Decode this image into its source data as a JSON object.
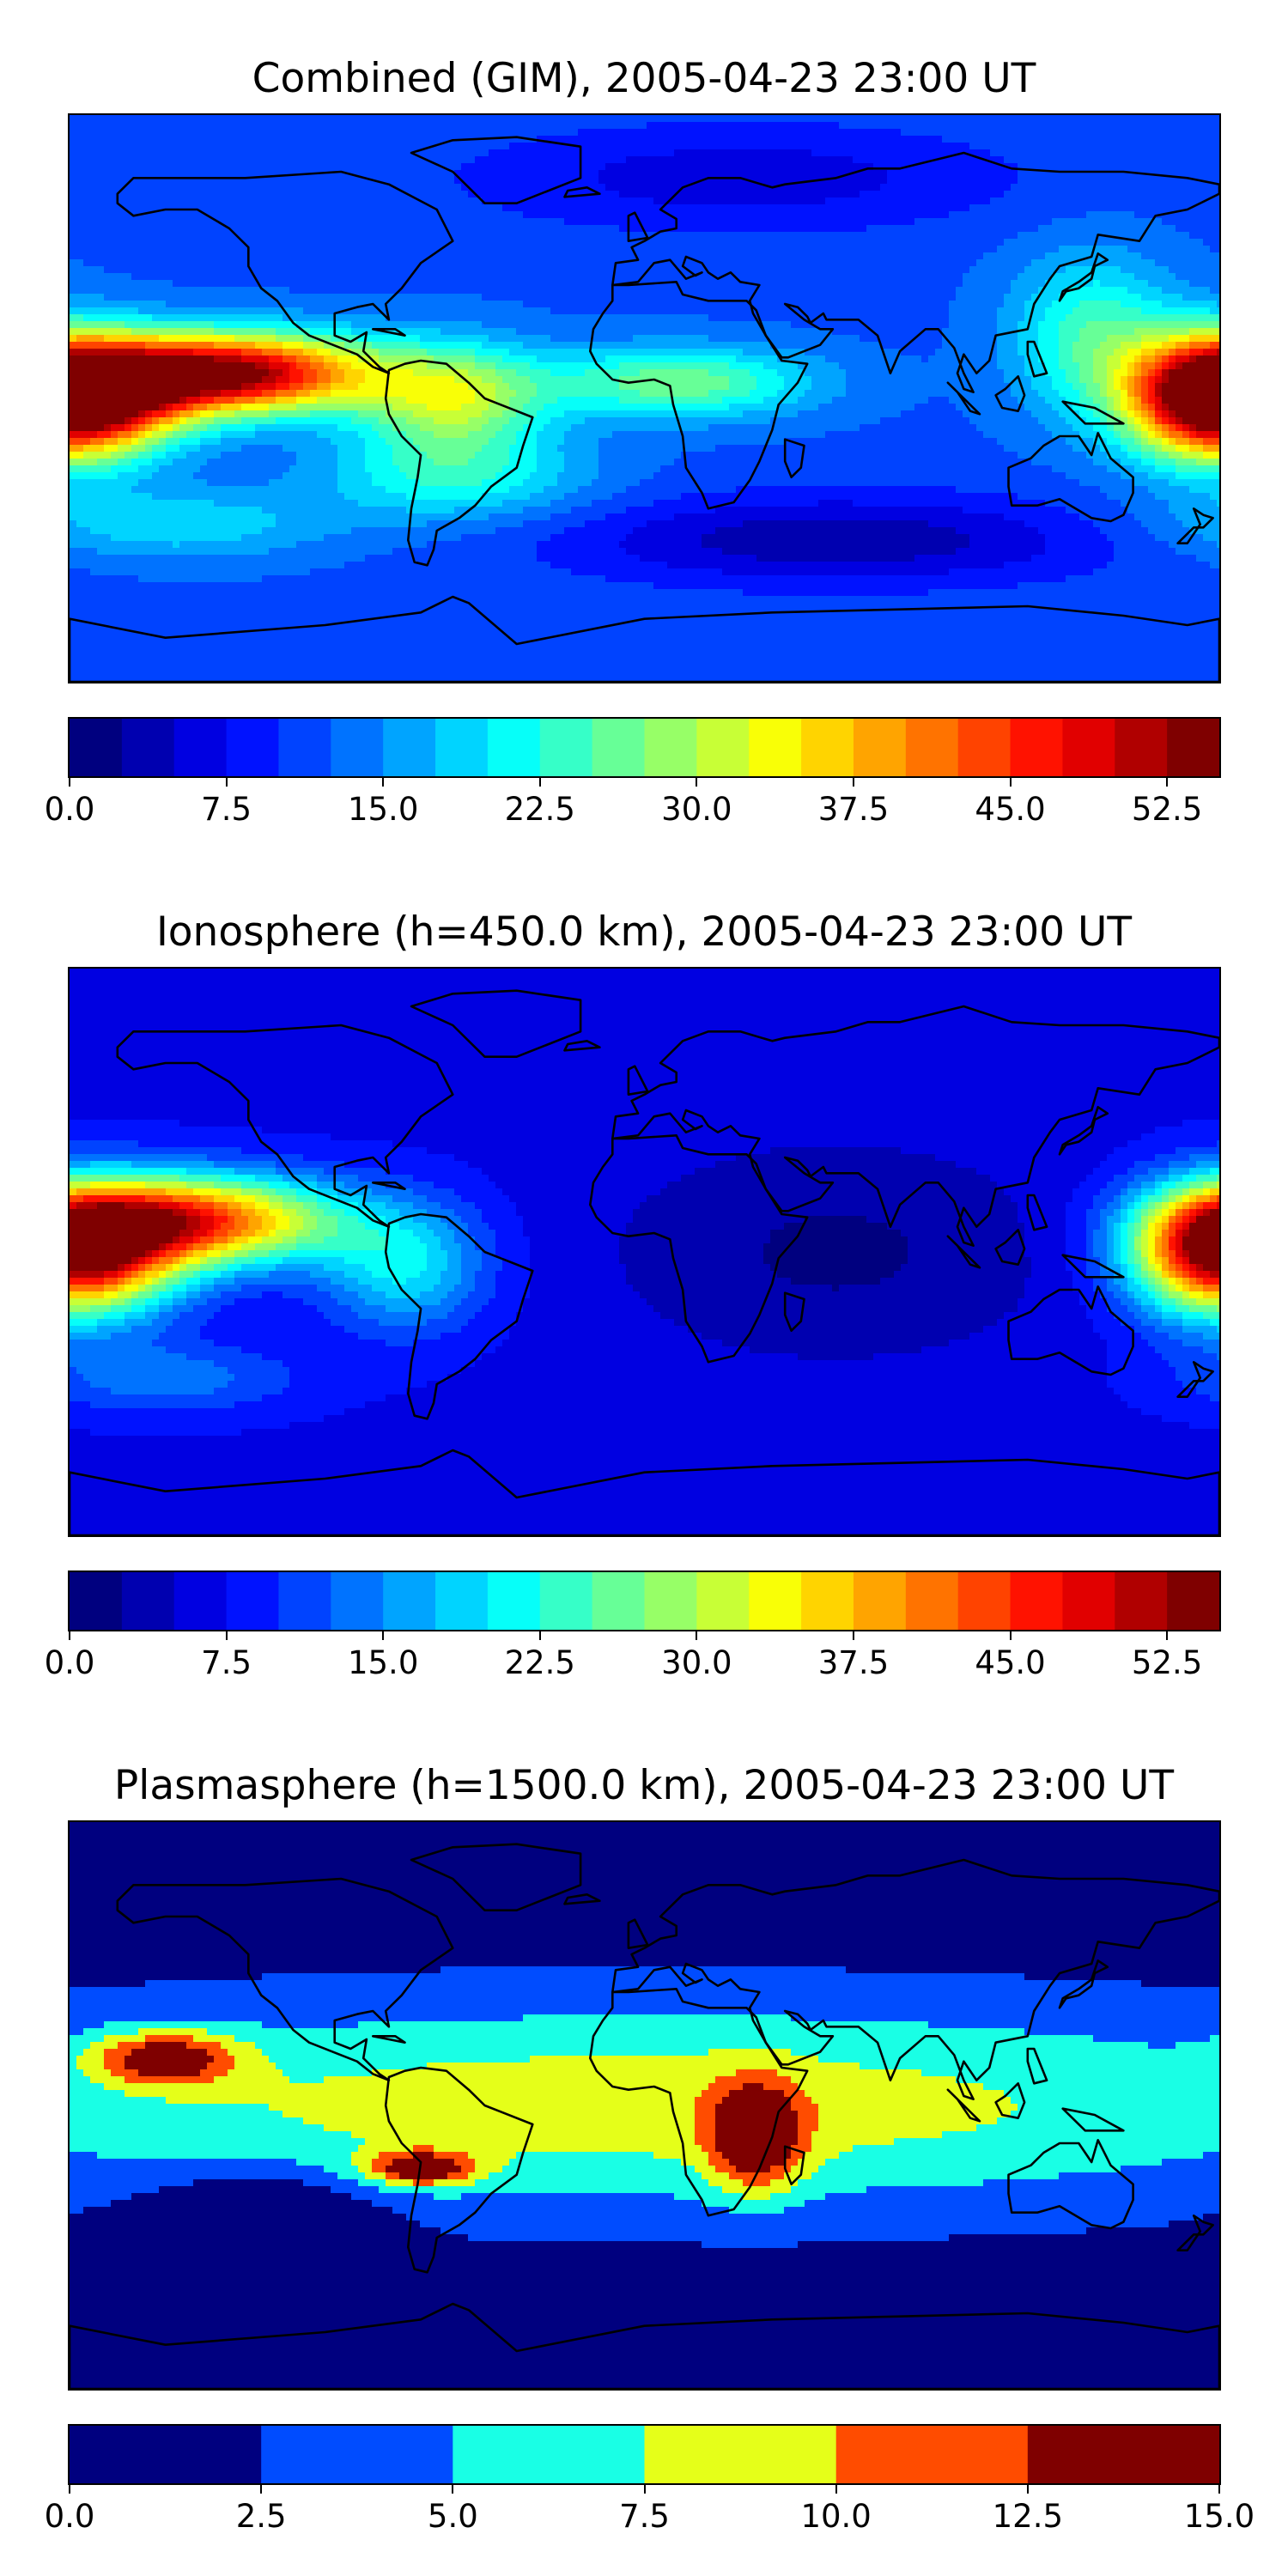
{
  "chart_data": [
    {
      "type": "heatmap",
      "title": "Combined (GIM), 2005-04-23 23:00 UT",
      "xlabel": "",
      "ylabel": "",
      "grid": false,
      "colorbar": {
        "min": 0.0,
        "max": 55.0,
        "levels": 22,
        "tick_values": [
          0.0,
          7.5,
          15.0,
          22.5,
          30.0,
          37.5,
          45.0,
          52.5
        ],
        "tick_labels": [
          "0.0",
          "7.5",
          "15.0",
          "22.5",
          "30.0",
          "37.5",
          "45.0",
          "52.5"
        ]
      },
      "field": {
        "background": 12,
        "features": [
          {
            "lon": -130,
            "lat": 8,
            "value": 54,
            "spread_lon": 32,
            "spread_lat": 9
          },
          {
            "lon": -170,
            "lat": 0,
            "value": 40,
            "spread_lon": 20,
            "spread_lat": 12
          },
          {
            "lon": -60,
            "lat": 0,
            "value": 30,
            "spread_lon": 20,
            "spread_lat": 12
          },
          {
            "lon": 10,
            "lat": 5,
            "value": 27,
            "spread_lon": 30,
            "spread_lat": 8
          },
          {
            "lon": 175,
            "lat": 0,
            "value": 42,
            "spread_lon": 18,
            "spread_lat": 14
          },
          {
            "lon": 140,
            "lat": 20,
            "value": 24,
            "spread_lon": 18,
            "spread_lat": 18
          },
          {
            "lon": -60,
            "lat": -25,
            "value": 22,
            "spread_lon": 30,
            "spread_lat": 10
          },
          {
            "lon": -150,
            "lat": -40,
            "value": 20,
            "spread_lon": 35,
            "spread_lat": 8
          },
          {
            "lon": 60,
            "lat": -45,
            "value": 3,
            "spread_lon": 60,
            "spread_lat": 10
          },
          {
            "lon": 30,
            "lat": 70,
            "value": 6,
            "spread_lon": 60,
            "spread_lat": 12
          }
        ]
      }
    },
    {
      "type": "heatmap",
      "title": "Ionosphere  (h=450.0 km), 2005-04-23 23:00 UT",
      "xlabel": "",
      "ylabel": "",
      "grid": false,
      "colorbar": {
        "min": 0.0,
        "max": 55.0,
        "levels": 22,
        "tick_values": [
          0.0,
          7.5,
          15.0,
          22.5,
          30.0,
          37.5,
          45.0,
          52.5
        ],
        "tick_labels": [
          "0.0",
          "7.5",
          "15.0",
          "22.5",
          "30.0",
          "37.5",
          "45.0",
          "52.5"
        ]
      },
      "field": {
        "background": 7,
        "features": [
          {
            "lon": -140,
            "lat": 10,
            "value": 43,
            "spread_lon": 32,
            "spread_lat": 10
          },
          {
            "lon": -170,
            "lat": 0,
            "value": 33,
            "spread_lon": 20,
            "spread_lat": 14
          },
          {
            "lon": 175,
            "lat": 0,
            "value": 32,
            "spread_lon": 18,
            "spread_lat": 14
          },
          {
            "lon": -75,
            "lat": -5,
            "value": 20,
            "spread_lon": 18,
            "spread_lat": 14
          },
          {
            "lon": 60,
            "lat": 0,
            "value": 2,
            "spread_lon": 50,
            "spread_lat": 25
          },
          {
            "lon": -150,
            "lat": -40,
            "value": 14,
            "spread_lon": 30,
            "spread_lat": 8
          }
        ]
      }
    },
    {
      "type": "heatmap",
      "title": "Plasmasphere (h=1500.0 km), 2005-04-23 23:00 UT",
      "xlabel": "",
      "ylabel": "",
      "grid": false,
      "colorbar": {
        "min": 0.0,
        "max": 15.0,
        "levels": 6,
        "tick_values": [
          0.0,
          2.5,
          5.0,
          7.5,
          10.0,
          12.5,
          15.0
        ],
        "tick_labels": [
          "0.0",
          "2.5",
          "5.0",
          "7.5",
          "10.0",
          "12.5",
          "15.0"
        ]
      },
      "field": {
        "background": 1,
        "features": [
          {
            "lon": 0,
            "lat": 0,
            "value": 9,
            "spread_lon": 180,
            "spread_lat": 24
          },
          {
            "lon": -150,
            "lat": 15,
            "value": 11,
            "spread_lon": 16,
            "spread_lat": 6
          },
          {
            "lon": 35,
            "lat": -10,
            "value": 11,
            "spread_lon": 10,
            "spread_lat": 12
          },
          {
            "lon": -70,
            "lat": -20,
            "value": 11,
            "spread_lon": 12,
            "spread_lat": 4
          },
          {
            "lon": -120,
            "lat": -35,
            "value": -4,
            "spread_lon": 25,
            "spread_lat": 10
          }
        ]
      }
    }
  ],
  "colors": {
    "jet_stops": [
      "#00007f",
      "#0000ff",
      "#007fff",
      "#00ffff",
      "#7fff7f",
      "#ffff00",
      "#ff7f00",
      "#ff0000",
      "#7f0000"
    ],
    "coastline": "#000000"
  }
}
